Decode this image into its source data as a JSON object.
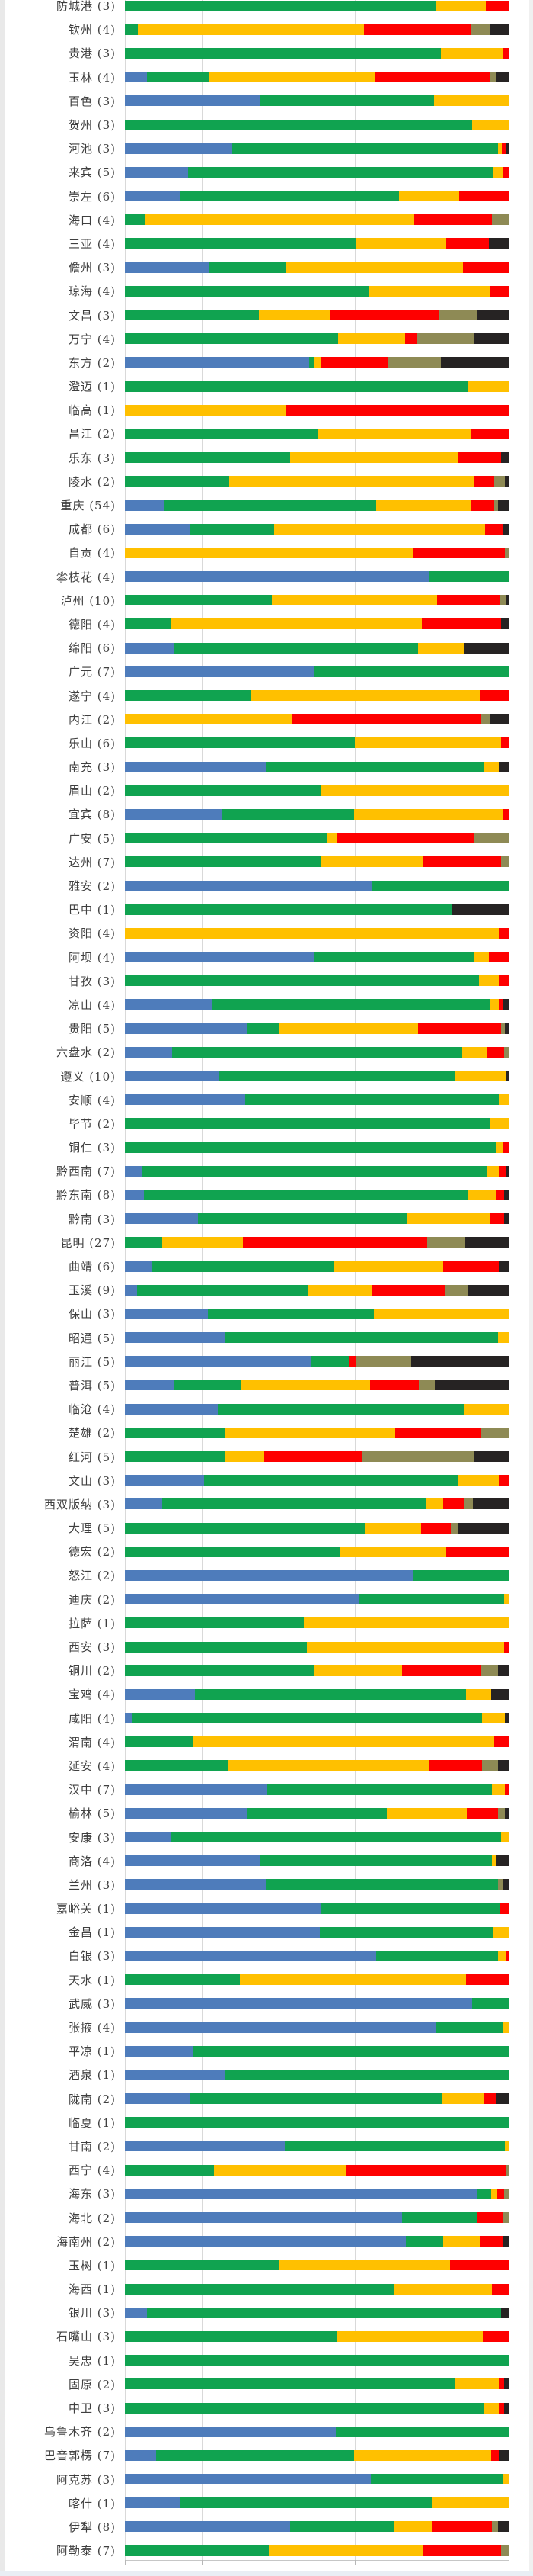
{
  "chart_data": {
    "type": "bar",
    "orientation": "horizontal",
    "stacked": true,
    "percent_stacked": true,
    "title": "",
    "xlabel": "",
    "ylabel": "",
    "x_axis": {
      "min": 0,
      "max": 100,
      "gridline_interval": 20,
      "gridlines_visible": true,
      "tick_labels_visible": false
    },
    "legend_position": "none",
    "series": [
      "blue",
      "green",
      "yellow",
      "red",
      "olive",
      "black"
    ],
    "series_colors": [
      "#4e7cbb",
      "#10a350",
      "#ffc000",
      "#fe0000",
      "#8e8a55",
      "#262323"
    ],
    "note_first_row_clipped_at_top": true,
    "rows": [
      {
        "label": "防城港 (3)",
        "values": [
          0,
          81,
          13,
          6,
          0,
          0
        ]
      },
      {
        "label": "钦州 (4)",
        "values": [
          0,
          3.3,
          59,
          27.8,
          5.2,
          4.7
        ]
      },
      {
        "label": "贵港 (3)",
        "values": [
          0,
          82.4,
          16,
          1.6,
          0,
          0
        ]
      },
      {
        "label": "玉林 (4)",
        "values": [
          5.8,
          16.1,
          43.2,
          30.2,
          1.6,
          3.1
        ]
      },
      {
        "label": "百色 (3)",
        "values": [
          35.2,
          45.3,
          19.5,
          0,
          0,
          0
        ]
      },
      {
        "label": "贺州 (3)",
        "values": [
          0,
          90.5,
          9.5,
          0,
          0,
          0
        ]
      },
      {
        "label": "河池 (3)",
        "values": [
          28,
          69.2,
          1,
          1,
          0,
          0.8
        ]
      },
      {
        "label": "来宾 (5)",
        "values": [
          16.4,
          79.4,
          2.6,
          1.6,
          0,
          0
        ]
      },
      {
        "label": "崇左 (6)",
        "values": [
          14.2,
          57.2,
          15.7,
          12.9,
          0,
          0
        ]
      },
      {
        "label": "海口 (4)",
        "values": [
          0,
          5.3,
          70.1,
          20.2,
          4.4,
          0
        ]
      },
      {
        "label": "三亚 (4)",
        "values": [
          0,
          60.3,
          23.5,
          11,
          0,
          5.2
        ]
      },
      {
        "label": "儋州 (3)",
        "values": [
          21.9,
          20,
          46.1,
          12,
          0,
          0
        ]
      },
      {
        "label": "琼海 (4)",
        "values": [
          0,
          63.4,
          31.9,
          4.7,
          0,
          0
        ]
      },
      {
        "label": "文昌 (3)",
        "values": [
          0,
          35,
          18.3,
          28.4,
          9.9,
          8.4
        ]
      },
      {
        "label": "万宁 (4)",
        "values": [
          0,
          55.5,
          17.5,
          3.1,
          14.9,
          9
        ]
      },
      {
        "label": "东方 (2)",
        "values": [
          48.1,
          1.3,
          1.8,
          17.3,
          13.9,
          17.6
        ]
      },
      {
        "label": "澄迈 (1)",
        "values": [
          0,
          89.5,
          10.5,
          0,
          0,
          0
        ]
      },
      {
        "label": "临高 (1)",
        "values": [
          0,
          0,
          42.1,
          57.9,
          0,
          0
        ]
      },
      {
        "label": "昌江 (2)",
        "values": [
          0,
          50.3,
          39.9,
          9.8,
          0,
          0
        ]
      },
      {
        "label": "乐东 (3)",
        "values": [
          0,
          43,
          43.8,
          11.2,
          0,
          2
        ]
      },
      {
        "label": "陵水 (2)",
        "values": [
          0,
          27.1,
          63.8,
          5.4,
          2.7,
          1
        ]
      },
      {
        "label": "重庆 (54)",
        "values": [
          10.4,
          55,
          24.6,
          6.2,
          1,
          2.8
        ]
      },
      {
        "label": "成都 (6)",
        "values": [
          16.9,
          21.9,
          55,
          4.9,
          0,
          1.3
        ]
      },
      {
        "label": "自贡 (4)",
        "values": [
          0,
          0,
          75.2,
          23.8,
          1,
          0
        ]
      },
      {
        "label": "攀枝花 (4)",
        "values": [
          79.3,
          20.7,
          0,
          0,
          0,
          0
        ]
      },
      {
        "label": "泸州 (10)",
        "values": [
          0,
          38.3,
          43,
          16.6,
          1.5,
          0.6
        ]
      },
      {
        "label": "德阳 (4)",
        "values": [
          0,
          11.9,
          65.5,
          20.7,
          0,
          1.9
        ]
      },
      {
        "label": "绵阳 (6)",
        "values": [
          12.9,
          63.4,
          12,
          0,
          0,
          11.7
        ]
      },
      {
        "label": "广元 (7)",
        "values": [
          49.2,
          50.8,
          0,
          0,
          0,
          0
        ]
      },
      {
        "label": "遂宁 (4)",
        "values": [
          0,
          32.8,
          59.8,
          7.4,
          0,
          0
        ]
      },
      {
        "label": "内江 (2)",
        "values": [
          0,
          0,
          43.5,
          49.4,
          2.2,
          4.9
        ]
      },
      {
        "label": "乐山 (6)",
        "values": [
          0,
          59.9,
          38.1,
          2,
          0,
          0
        ]
      },
      {
        "label": "南充 (3)",
        "values": [
          36.8,
          56.7,
          4,
          0,
          0,
          2.5
        ]
      },
      {
        "label": "眉山 (2)",
        "values": [
          0,
          51.2,
          48.8,
          0,
          0,
          0
        ]
      },
      {
        "label": "宜宾 (8)",
        "values": [
          25.3,
          34.5,
          38.9,
          1.3,
          0,
          0
        ]
      },
      {
        "label": "广安 (5)",
        "values": [
          0,
          52.8,
          2.4,
          35.8,
          9,
          0
        ]
      },
      {
        "label": "达州 (7)",
        "values": [
          0,
          51,
          26.6,
          20.4,
          2,
          0
        ]
      },
      {
        "label": "雅安 (2)",
        "values": [
          64.5,
          35.5,
          0,
          0,
          0,
          0
        ]
      },
      {
        "label": "巴中 (1)",
        "values": [
          0,
          85.1,
          0,
          0,
          0,
          14.9
        ]
      },
      {
        "label": "资阳 (4)",
        "values": [
          0,
          0,
          97.5,
          2.5,
          0,
          0
        ]
      },
      {
        "label": "阿坝 (4)",
        "values": [
          49.4,
          41.7,
          3.8,
          5.1,
          0,
          0
        ]
      },
      {
        "label": "甘孜 (3)",
        "values": [
          0,
          92.3,
          5.2,
          2.5,
          0,
          0
        ]
      },
      {
        "label": "凉山 (4)",
        "values": [
          22.6,
          72.5,
          2.4,
          1,
          0,
          1.5
        ]
      },
      {
        "label": "贵阳 (5)",
        "values": [
          31.9,
          8.4,
          36.1,
          21.6,
          1,
          1
        ]
      },
      {
        "label": "六盘水 (2)",
        "values": [
          12.3,
          75.5,
          6.6,
          4.4,
          1.2,
          0
        ]
      },
      {
        "label": "遵义 (10)",
        "values": [
          24.4,
          61.7,
          13.2,
          0,
          0,
          0.7
        ]
      },
      {
        "label": "安顺 (4)",
        "values": [
          31.4,
          66.2,
          2.4,
          0,
          0,
          0
        ]
      },
      {
        "label": "毕节 (2)",
        "values": [
          0,
          95.3,
          4.7,
          0,
          0,
          0
        ]
      },
      {
        "label": "铜仁 (3)",
        "values": [
          0,
          96.6,
          1.8,
          1.6,
          0,
          0
        ]
      },
      {
        "label": "黔西南 (7)",
        "values": [
          4.4,
          90,
          3.2,
          1.8,
          0,
          0.6
        ]
      },
      {
        "label": "黔东南 (8)",
        "values": [
          4.9,
          84.5,
          7.5,
          2,
          0,
          1.1
        ]
      },
      {
        "label": "黔南 (3)",
        "values": [
          19.1,
          54.5,
          21.7,
          3.5,
          0,
          1.2
        ]
      },
      {
        "label": "昆明 (27)",
        "values": [
          0,
          9.8,
          20.9,
          48.1,
          9.8,
          11.4
        ]
      },
      {
        "label": "曲靖 (6)",
        "values": [
          7.1,
          47.5,
          28.4,
          14.6,
          0,
          2.4
        ]
      },
      {
        "label": "玉溪 (9)",
        "values": [
          3.1,
          44.5,
          16.9,
          19.1,
          5.6,
          10.8
        ]
      },
      {
        "label": "保山 (3)",
        "values": [
          21.7,
          43.2,
          35.1,
          0,
          0,
          0
        ]
      },
      {
        "label": "昭通 (5)",
        "values": [
          25.9,
          71.4,
          2.7,
          0,
          0,
          0
        ]
      },
      {
        "label": "丽江 (5)",
        "values": [
          48.7,
          9.8,
          0,
          1.9,
          14.2,
          25.4
        ]
      },
      {
        "label": "普洱 (5)",
        "values": [
          12.9,
          17.2,
          33.7,
          12.7,
          4.2,
          19.3
        ]
      },
      {
        "label": "临沧 (4)",
        "values": [
          24.3,
          64.2,
          11.5,
          0,
          0,
          0
        ]
      },
      {
        "label": "楚雄 (2)",
        "values": [
          0,
          26.1,
          44.4,
          22.4,
          7.1,
          0
        ]
      },
      {
        "label": "红河 (5)",
        "values": [
          0,
          26.1,
          10.2,
          25.4,
          29.3,
          9
        ]
      },
      {
        "label": "文山 (3)",
        "values": [
          20.6,
          66.1,
          10.8,
          2.5,
          0,
          0
        ]
      },
      {
        "label": "西双版纳 (3)",
        "values": [
          9.7,
          68.8,
          4.4,
          5.3,
          2.5,
          9.3
        ]
      },
      {
        "label": "大理 (5)",
        "values": [
          0,
          62.6,
          14.6,
          7.8,
          1.8,
          13.2
        ]
      },
      {
        "label": "德宏 (2)",
        "values": [
          0,
          56.1,
          27.7,
          16.2,
          0,
          0
        ]
      },
      {
        "label": "怒江 (2)",
        "values": [
          75.2,
          24.8,
          0,
          0,
          0,
          0
        ]
      },
      {
        "label": "迪庆 (2)",
        "values": [
          61.1,
          37.8,
          1.1,
          0,
          0,
          0
        ]
      },
      {
        "label": "拉萨 (1)",
        "values": [
          0,
          46.6,
          53.4,
          0,
          0,
          0
        ]
      },
      {
        "label": "西安 (3)",
        "values": [
          0,
          47.4,
          51.4,
          1.2,
          0,
          0
        ]
      },
      {
        "label": "铜川 (2)",
        "values": [
          0,
          49.4,
          22.9,
          20.6,
          4.3,
          2.8
        ]
      },
      {
        "label": "宝鸡 (4)",
        "values": [
          18.2,
          70.7,
          6.5,
          0,
          0,
          4.6
        ]
      },
      {
        "label": "咸阳 (4)",
        "values": [
          1.8,
          91.3,
          5.9,
          0,
          0,
          1
        ]
      },
      {
        "label": "渭南 (4)",
        "values": [
          0,
          17.9,
          78.4,
          3.7,
          0,
          0
        ]
      },
      {
        "label": "延安 (4)",
        "values": [
          0,
          26.8,
          52.4,
          13.8,
          4.3,
          2.7
        ]
      },
      {
        "label": "汉中 (7)",
        "values": [
          37.2,
          58.4,
          3.4,
          1,
          0,
          0
        ]
      },
      {
        "label": "榆林 (5)",
        "values": [
          31.9,
          36.4,
          20.7,
          8.3,
          1.8,
          0.9
        ]
      },
      {
        "label": "安康 (3)",
        "values": [
          12.2,
          85.8,
          2,
          0,
          0,
          0
        ]
      },
      {
        "label": "商洛 (4)",
        "values": [
          35.4,
          60.2,
          1.3,
          0,
          0,
          3.1
        ]
      },
      {
        "label": "兰州 (3)",
        "values": [
          36.8,
          60.4,
          0,
          0,
          1.5,
          1.3
        ]
      },
      {
        "label": "嘉峪关 (1)",
        "values": [
          51.2,
          46.6,
          0,
          2.2,
          0,
          0
        ]
      },
      {
        "label": "金昌 (1)",
        "values": [
          50.8,
          45,
          4.2,
          0,
          0,
          0
        ]
      },
      {
        "label": "白银 (3)",
        "values": [
          65.4,
          31.8,
          2.1,
          0.7,
          0,
          0
        ]
      },
      {
        "label": "天水 (1)",
        "values": [
          0,
          29.9,
          59,
          11.1,
          0,
          0
        ]
      },
      {
        "label": "武威 (3)",
        "values": [
          90.5,
          9.5,
          0,
          0,
          0,
          0
        ]
      },
      {
        "label": "张掖 (4)",
        "values": [
          81.2,
          17.3,
          1.5,
          0,
          0,
          0
        ]
      },
      {
        "label": "平凉 (1)",
        "values": [
          17.9,
          82.1,
          0,
          0,
          0,
          0
        ]
      },
      {
        "label": "酒泉 (1)",
        "values": [
          25.9,
          74.1,
          0,
          0,
          0,
          0
        ]
      },
      {
        "label": "陇南 (2)",
        "values": [
          16.9,
          65.6,
          11.2,
          3.1,
          0,
          3.2
        ]
      },
      {
        "label": "临夏 (1)",
        "values": [
          0,
          100,
          0,
          0,
          0,
          0
        ]
      },
      {
        "label": "甘南 (2)",
        "values": [
          41.6,
          57.4,
          1,
          0,
          0,
          0
        ]
      },
      {
        "label": "西宁 (4)",
        "values": [
          0,
          23.2,
          34.4,
          41.6,
          0.8,
          0
        ]
      },
      {
        "label": "海东 (3)",
        "values": [
          91.8,
          3.7,
          1.6,
          1.8,
          1.1,
          0
        ]
      },
      {
        "label": "海北 (2)",
        "values": [
          72.3,
          19.4,
          0,
          6.9,
          1.4,
          0
        ]
      },
      {
        "label": "海南州 (2)",
        "values": [
          73.2,
          9.7,
          9.8,
          5.8,
          0,
          1.5
        ]
      },
      {
        "label": "玉树 (1)",
        "values": [
          0,
          40.1,
          44.6,
          15.3,
          0,
          0
        ]
      },
      {
        "label": "海西 (1)",
        "values": [
          0,
          70,
          25.6,
          4.4,
          0,
          0
        ]
      },
      {
        "label": "银川 (3)",
        "values": [
          5.8,
          92.2,
          0,
          0,
          0,
          2
        ]
      },
      {
        "label": "石嘴山 (3)",
        "values": [
          0,
          55.2,
          38,
          6.8,
          0,
          0
        ]
      },
      {
        "label": "吴忠 (1)",
        "values": [
          0,
          100,
          0,
          0,
          0,
          0
        ]
      },
      {
        "label": "固原 (2)",
        "values": [
          0,
          86.1,
          11.4,
          1.4,
          0,
          1.1
        ]
      },
      {
        "label": "中卫 (3)",
        "values": [
          0,
          93.6,
          3.9,
          1.4,
          0,
          1.1
        ]
      },
      {
        "label": "乌鲁木齐 (2)",
        "values": [
          55,
          45,
          0,
          0,
          0,
          0
        ]
      },
      {
        "label": "巴音郭楞 (7)",
        "values": [
          8.2,
          51.5,
          35.7,
          2.3,
          0,
          2.3
        ]
      },
      {
        "label": "阿克苏 (3)",
        "values": [
          64.1,
          34.4,
          1.5,
          0,
          0,
          0
        ]
      },
      {
        "label": "喀什 (1)",
        "values": [
          14.2,
          65.7,
          20.1,
          0,
          0,
          0
        ]
      },
      {
        "label": "伊犁 (8)",
        "values": [
          43,
          27,
          10.2,
          15.4,
          1.6,
          2.8
        ]
      },
      {
        "label": "阿勒泰 (7)",
        "values": [
          0,
          37.5,
          40.2,
          20.3,
          2,
          0
        ]
      }
    ]
  },
  "colors": {
    "background": "#ffffff",
    "gridline": "#d9d9d9",
    "axis_line": "#c6c6c6",
    "tick": "#b7b7b7",
    "label_text": "#3f3f3f",
    "left_edge_strip": "#e9e9e9",
    "right_edge_strip": "#f0f0f0",
    "bottom_edge_strip": "#e9eef4"
  }
}
